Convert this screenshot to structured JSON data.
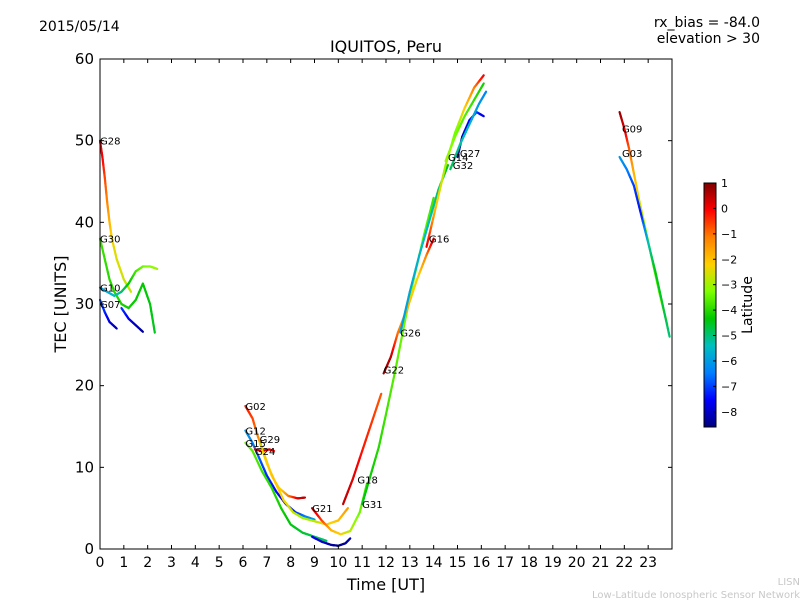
{
  "header": {
    "date": "2015/05/14",
    "bias": "rx_bias = -84.0",
    "elevation": "elevation > 30"
  },
  "footer": {
    "line1": "LISN",
    "line2": "Low-Latitude Ionospheric Sensor Network"
  },
  "chart_data": {
    "type": "scatter",
    "title": "IQUITOS, Peru",
    "xlabel": "Time [UT]",
    "ylabel": "TEC [UNITS]",
    "xlim": [
      0,
      24
    ],
    "ylim": [
      0,
      60
    ],
    "xticks": [
      "0",
      "1",
      "2",
      "3",
      "4",
      "5",
      "6",
      "7",
      "8",
      "9",
      "10",
      "11",
      "12",
      "13",
      "14",
      "15",
      "16",
      "17",
      "18",
      "19",
      "20",
      "21",
      "22",
      "23"
    ],
    "yticks": [
      "0",
      "10",
      "20",
      "30",
      "40",
      "50",
      "60"
    ],
    "grid": false,
    "colorbar": {
      "label": "Latitude",
      "range": [
        -8.6,
        1.0
      ],
      "ticks": [
        "1",
        "0",
        "−1",
        "−2",
        "−3",
        "−4",
        "−5",
        "−6",
        "−7",
        "−8"
      ],
      "colors": [
        "#00007f",
        "#0000ff",
        "#007fff",
        "#00bfbf",
        "#00c800",
        "#7fff00",
        "#ffd000",
        "#ff7f00",
        "#ff0000",
        "#7f0000"
      ]
    },
    "series": [
      {
        "name": "G28",
        "label_at": [
          0.0,
          50.0
        ],
        "points": [
          [
            0.0,
            50.0
          ],
          [
            0.1,
            48.0
          ],
          [
            0.2,
            45.5
          ],
          [
            0.3,
            42.5
          ],
          [
            0.4,
            40.0
          ],
          [
            0.5,
            38.0
          ],
          [
            0.7,
            35.5
          ],
          [
            1.0,
            33.0
          ],
          [
            1.3,
            31.5
          ]
        ],
        "lat": [
          0.2,
          0.0,
          -0.6,
          -1.2,
          -1.8,
          -2.3,
          -2.5,
          -2.6,
          -2.7
        ]
      },
      {
        "name": "G30",
        "label_at": [
          0.0,
          38.0
        ],
        "points": [
          [
            0.0,
            38.0
          ],
          [
            0.2,
            35.5
          ],
          [
            0.4,
            33.0
          ],
          [
            0.6,
            31.5
          ],
          [
            0.9,
            30.0
          ],
          [
            1.2,
            29.5
          ],
          [
            1.5,
            30.5
          ],
          [
            1.8,
            32.5
          ],
          [
            2.1,
            30.0
          ],
          [
            2.3,
            26.5
          ]
        ],
        "lat": [
          -3.8,
          -3.9,
          -4.0,
          -4.0,
          -4.1,
          -4.2,
          -4.3,
          -4.3,
          -4.4,
          -4.5
        ]
      },
      {
        "name": "G10",
        "label_at": [
          0.0,
          32.0
        ],
        "points": [
          [
            0.0,
            32.0
          ],
          [
            0.3,
            31.5
          ],
          [
            0.6,
            31.0
          ],
          [
            0.9,
            31.5
          ],
          [
            1.2,
            32.5
          ],
          [
            1.5,
            34.0
          ],
          [
            1.8,
            34.6
          ],
          [
            2.1,
            34.6
          ],
          [
            2.4,
            34.3
          ]
        ],
        "lat": [
          -6.0,
          -5.8,
          -5.4,
          -5.0,
          -4.4,
          -3.8,
          -3.4,
          -3.2,
          -3.0
        ]
      },
      {
        "name": "G07",
        "label_at": [
          0.0,
          30.0
        ],
        "points": [
          [
            0.0,
            30.5
          ],
          [
            0.2,
            29.0
          ],
          [
            0.4,
            27.8
          ],
          [
            0.7,
            27.0
          ]
        ],
        "lat": [
          -6.8,
          -7.2,
          -7.8,
          -8.2
        ]
      },
      {
        "name": "G32b",
        "label_at": null,
        "points": [
          [
            0.9,
            29.5
          ],
          [
            1.2,
            28.2
          ],
          [
            1.5,
            27.4
          ],
          [
            1.8,
            26.6
          ]
        ],
        "lat": [
          -7.0,
          -7.6,
          -8.1,
          -8.4
        ]
      },
      {
        "name": "G02",
        "label_at": [
          6.1,
          17.5
        ],
        "points": [
          [
            6.1,
            17.5
          ],
          [
            6.4,
            16.0
          ],
          [
            6.6,
            14.0
          ],
          [
            6.9,
            11.5
          ],
          [
            7.2,
            9.0
          ],
          [
            7.5,
            7.5
          ],
          [
            7.9,
            6.5
          ],
          [
            8.3,
            6.2
          ],
          [
            8.6,
            6.3
          ]
        ],
        "lat": [
          -0.2,
          -0.6,
          -1.2,
          -1.8,
          -2.2,
          -2.5,
          -1.2,
          0.2,
          0.5
        ]
      },
      {
        "name": "G12",
        "label_at": [
          6.1,
          14.5
        ],
        "points": [
          [
            6.1,
            14.5
          ],
          [
            6.4,
            13.0
          ],
          [
            6.7,
            11.0
          ],
          [
            7.0,
            9.0
          ],
          [
            7.4,
            7.0
          ],
          [
            7.8,
            5.5
          ],
          [
            8.2,
            4.5
          ],
          [
            8.6,
            4.0
          ],
          [
            9.0,
            3.6
          ]
        ],
        "lat": [
          -6.0,
          -6.4,
          -6.8,
          -7.2,
          -7.5,
          -7.8,
          -7.2,
          -6.5,
          -6.0
        ]
      },
      {
        "name": "G15",
        "label_at": [
          6.1,
          13.0
        ],
        "points": [
          [
            6.1,
            13.0
          ],
          [
            6.4,
            12.0
          ],
          [
            6.8,
            9.5
          ],
          [
            7.2,
            7.5
          ],
          [
            7.6,
            5.0
          ],
          [
            8.0,
            3.0
          ],
          [
            8.5,
            2.0
          ],
          [
            9.0,
            1.5
          ],
          [
            9.5,
            1.0
          ]
        ],
        "lat": [
          -3.5,
          -3.6,
          -3.8,
          -4.0,
          -4.2,
          -4.4,
          -4.6,
          -4.8,
          -4.9
        ]
      },
      {
        "name": "G24",
        "label_at": [
          6.5,
          12.0
        ],
        "points": [
          [
            6.5,
            12.2
          ],
          [
            6.8,
            12.0
          ],
          [
            7.1,
            12.2
          ],
          [
            7.3,
            12.0
          ]
        ],
        "lat": [
          0.2,
          0.5,
          0.3,
          0.0
        ]
      },
      {
        "name": "G29",
        "label_at": [
          6.7,
          13.5
        ],
        "points": [
          [
            6.7,
            13.0
          ],
          [
            7.0,
            10.5
          ],
          [
            7.3,
            8.5
          ],
          [
            7.7,
            6.0
          ],
          [
            8.1,
            4.5
          ],
          [
            8.5,
            3.8
          ],
          [
            9.0,
            3.4
          ],
          [
            9.5,
            3.0
          ],
          [
            10.0,
            3.5
          ],
          [
            10.4,
            5.0
          ]
        ],
        "lat": [
          -2.5,
          -2.2,
          -2.0,
          -2.3,
          -2.7,
          -3.0,
          -2.8,
          -2.4,
          -2.0,
          -1.5
        ]
      },
      {
        "name": "G21",
        "label_at": [
          8.9,
          5.0
        ],
        "points": [
          [
            8.9,
            5.0
          ],
          [
            9.3,
            3.5
          ],
          [
            9.7,
            2.3
          ],
          [
            10.1,
            1.8
          ],
          [
            10.5,
            2.2
          ],
          [
            10.9,
            4.5
          ],
          [
            11.2,
            8.0
          ]
        ],
        "lat": [
          0.5,
          -0.5,
          -1.8,
          -2.2,
          -2.8,
          -3.4,
          -3.8
        ]
      },
      {
        "name": "G21b",
        "label_at": null,
        "points": [
          [
            8.9,
            1.5
          ],
          [
            9.3,
            0.9
          ],
          [
            9.7,
            0.5
          ],
          [
            10.0,
            0.4
          ],
          [
            10.3,
            0.7
          ],
          [
            10.5,
            1.3
          ]
        ],
        "lat": [
          -7.5,
          -8.0,
          -8.3,
          -8.5,
          -8.4,
          -8.2
        ]
      },
      {
        "name": "G18",
        "label_at": [
          10.8,
          8.5
        ],
        "points": [
          [
            10.2,
            5.5
          ],
          [
            10.6,
            8.5
          ],
          [
            11.0,
            12.0
          ],
          [
            11.4,
            15.5
          ],
          [
            11.8,
            19.0
          ]
        ],
        "lat": [
          0.5,
          0.2,
          -0.2,
          -0.5,
          -0.8
        ]
      },
      {
        "name": "G31",
        "label_at": [
          11.0,
          5.5
        ],
        "points": [
          [
            11.0,
            5.5
          ],
          [
            11.3,
            8.5
          ],
          [
            11.7,
            12.5
          ],
          [
            12.0,
            16.5
          ],
          [
            12.4,
            22.0
          ],
          [
            12.8,
            28.0
          ],
          [
            13.2,
            33.5
          ],
          [
            13.6,
            38.5
          ],
          [
            14.0,
            43.0
          ]
        ],
        "lat": [
          -4.5,
          -4.3,
          -4.0,
          -3.8,
          -3.6,
          -3.4,
          -3.2,
          -3.5,
          -3.8
        ]
      },
      {
        "name": "G22",
        "label_at": [
          11.9,
          22.0
        ],
        "points": [
          [
            11.9,
            21.5
          ],
          [
            12.2,
            23.5
          ],
          [
            12.5,
            26.5
          ],
          [
            12.9,
            29.5
          ],
          [
            13.3,
            33.0
          ],
          [
            13.7,
            36.0
          ],
          [
            14.0,
            38.0
          ]
        ],
        "lat": [
          0.8,
          0.5,
          -1.0,
          -1.8,
          -2.4,
          -1.2,
          0.4
        ]
      },
      {
        "name": "G26",
        "label_at": [
          12.6,
          26.5
        ],
        "points": [
          [
            12.6,
            26.5
          ],
          [
            13.0,
            31.5
          ],
          [
            13.4,
            36.0
          ],
          [
            13.8,
            40.0
          ],
          [
            14.2,
            44.0
          ],
          [
            14.6,
            47.0
          ]
        ],
        "lat": [
          -6.0,
          -5.8,
          -5.6,
          -5.4,
          -5.0,
          -4.4
        ]
      },
      {
        "name": "G16",
        "label_at": [
          13.8,
          38.0
        ],
        "points": [
          [
            13.7,
            37.0
          ],
          [
            14.1,
            42.0
          ],
          [
            14.5,
            47.0
          ],
          [
            14.9,
            51.0
          ],
          [
            15.3,
            54.0
          ],
          [
            15.7,
            56.5
          ],
          [
            16.1,
            58.0
          ]
        ],
        "lat": [
          0.2,
          -2.0,
          -3.0,
          -3.4,
          -2.2,
          -1.2,
          0.0
        ]
      },
      {
        "name": "G14",
        "label_at": [
          14.6,
          48.0
        ],
        "points": [
          [
            14.5,
            47.5
          ],
          [
            14.9,
            50.5
          ],
          [
            15.3,
            53.0
          ],
          [
            15.7,
            55.0
          ],
          [
            16.1,
            57.0
          ]
        ],
        "lat": [
          -3.0,
          -3.3,
          -3.6,
          -3.9,
          -4.2
        ]
      },
      {
        "name": "G27",
        "label_at": [
          15.1,
          48.5
        ],
        "points": [
          [
            15.0,
            48.0
          ],
          [
            15.2,
            50.5
          ],
          [
            15.5,
            52.5
          ],
          [
            15.8,
            53.5
          ],
          [
            16.1,
            53.0
          ]
        ],
        "lat": [
          -8.4,
          -8.2,
          -7.6,
          -7.0,
          -7.8
        ]
      },
      {
        "name": "G32",
        "label_at": [
          14.8,
          47.0
        ],
        "points": [
          [
            14.7,
            46.5
          ],
          [
            15.1,
            49.5
          ],
          [
            15.5,
            52.0
          ],
          [
            15.9,
            54.5
          ],
          [
            16.2,
            56.0
          ]
        ],
        "lat": [
          -4.8,
          -5.2,
          -5.6,
          -6.0,
          -6.4
        ]
      },
      {
        "name": "G09",
        "label_at": [
          21.9,
          51.5
        ],
        "points": [
          [
            21.8,
            53.5
          ],
          [
            22.0,
            51.5
          ],
          [
            22.2,
            49.0
          ],
          [
            22.4,
            46.0
          ],
          [
            22.6,
            43.0
          ],
          [
            22.9,
            39.0
          ],
          [
            23.2,
            35.0
          ],
          [
            23.5,
            31.0
          ],
          [
            23.8,
            27.5
          ]
        ],
        "lat": [
          0.8,
          0.3,
          -0.8,
          -1.8,
          -2.4,
          -3.2,
          -3.8,
          -3.3,
          -2.5
        ]
      },
      {
        "name": "G03",
        "label_at": [
          21.9,
          48.5
        ],
        "points": [
          [
            21.8,
            48.0
          ],
          [
            22.1,
            46.5
          ],
          [
            22.4,
            44.5
          ],
          [
            22.7,
            41.0
          ],
          [
            23.0,
            37.5
          ],
          [
            23.3,
            34.0
          ],
          [
            23.6,
            30.0
          ],
          [
            23.9,
            26.0
          ]
        ],
        "lat": [
          -6.0,
          -6.4,
          -7.0,
          -7.4,
          -5.4,
          -4.4,
          -4.6,
          -5.0
        ]
      }
    ]
  }
}
